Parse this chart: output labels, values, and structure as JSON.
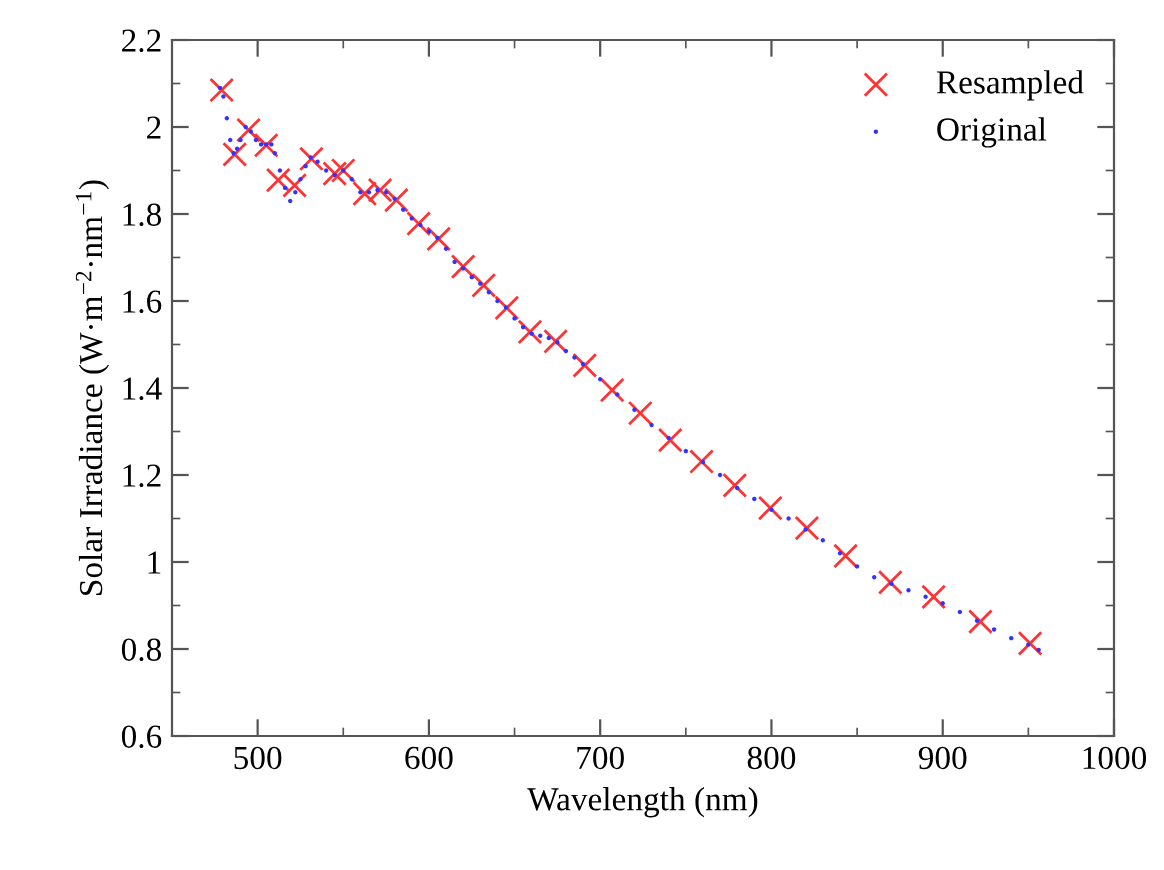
{
  "chart_data": {
    "type": "scatter",
    "xlabel": "Wavelength (nm)",
    "ylabel": "Solar Irradiance (W·m$^{−2}$·nm$^{−1}$)",
    "xlim": [
      450,
      1000
    ],
    "xticks": [
      500,
      600,
      700,
      800,
      900,
      1000
    ],
    "ylim": [
      0.6,
      2.2
    ],
    "yticks": [
      0.6,
      0.8,
      1,
      1.2,
      1.4,
      1.6,
      1.8,
      2,
      2.2
    ],
    "grid": false,
    "legend": "top right",
    "series": [
      {
        "name": "Resampled",
        "color": "#ff3333",
        "marker": "cross",
        "x": [
          479,
          486.6,
          494.7,
          505,
          512,
          521.6,
          531.4,
          545,
          550,
          562.5,
          571.5,
          581,
          594,
          605.7,
          620,
          632,
          645.5,
          659,
          674,
          691,
          707,
          723.4,
          740.9,
          759.2,
          778.6,
          799.3,
          820.7,
          843.3,
          869.4,
          894.7,
          922,
          951
        ],
        "values": [
          2.085,
          1.937,
          1.993,
          1.958,
          1.878,
          1.866,
          1.927,
          1.893,
          1.9,
          1.847,
          1.855,
          1.832,
          1.778,
          1.743,
          1.679,
          1.636,
          1.584,
          1.529,
          1.507,
          1.452,
          1.395,
          1.342,
          1.28,
          1.231,
          1.176,
          1.124,
          1.078,
          1.014,
          0.953,
          0.92,
          0.863,
          0.813
        ]
      },
      {
        "name": "Original",
        "color": "#3333ff",
        "marker": "circle",
        "x": [
          478,
          480,
          482,
          484,
          486,
          488,
          490,
          493,
          496,
          499,
          502,
          505,
          508,
          510,
          513,
          516,
          519,
          522,
          525,
          528,
          531,
          535,
          540,
          545,
          550,
          555,
          560,
          565,
          570,
          575,
          580,
          585,
          590,
          595,
          600,
          605,
          610,
          615,
          620,
          625,
          630,
          635,
          640,
          645,
          650,
          655,
          660,
          665,
          670,
          675,
          680,
          685,
          690,
          700,
          710,
          720,
          730,
          740,
          750,
          760,
          770,
          780,
          790,
          800,
          810,
          820,
          830,
          840,
          850,
          860,
          870,
          880,
          890,
          900,
          910,
          920,
          930,
          940,
          950,
          956
        ],
        "values": [
          2.09,
          2.07,
          2.02,
          1.97,
          1.94,
          1.95,
          1.97,
          2.0,
          1.99,
          1.97,
          1.96,
          1.96,
          1.96,
          1.94,
          1.9,
          1.86,
          1.83,
          1.85,
          1.88,
          1.91,
          1.93,
          1.92,
          1.9,
          1.89,
          1.9,
          1.88,
          1.85,
          1.85,
          1.855,
          1.85,
          1.835,
          1.81,
          1.79,
          1.775,
          1.76,
          1.745,
          1.72,
          1.69,
          1.675,
          1.655,
          1.64,
          1.62,
          1.6,
          1.585,
          1.56,
          1.54,
          1.525,
          1.52,
          1.515,
          1.505,
          1.485,
          1.47,
          1.455,
          1.42,
          1.385,
          1.35,
          1.315,
          1.285,
          1.255,
          1.23,
          1.2,
          1.17,
          1.145,
          1.12,
          1.1,
          1.075,
          1.05,
          1.02,
          0.99,
          0.965,
          0.95,
          0.935,
          0.92,
          0.905,
          0.885,
          0.865,
          0.845,
          0.825,
          0.81,
          0.798
        ]
      }
    ]
  }
}
